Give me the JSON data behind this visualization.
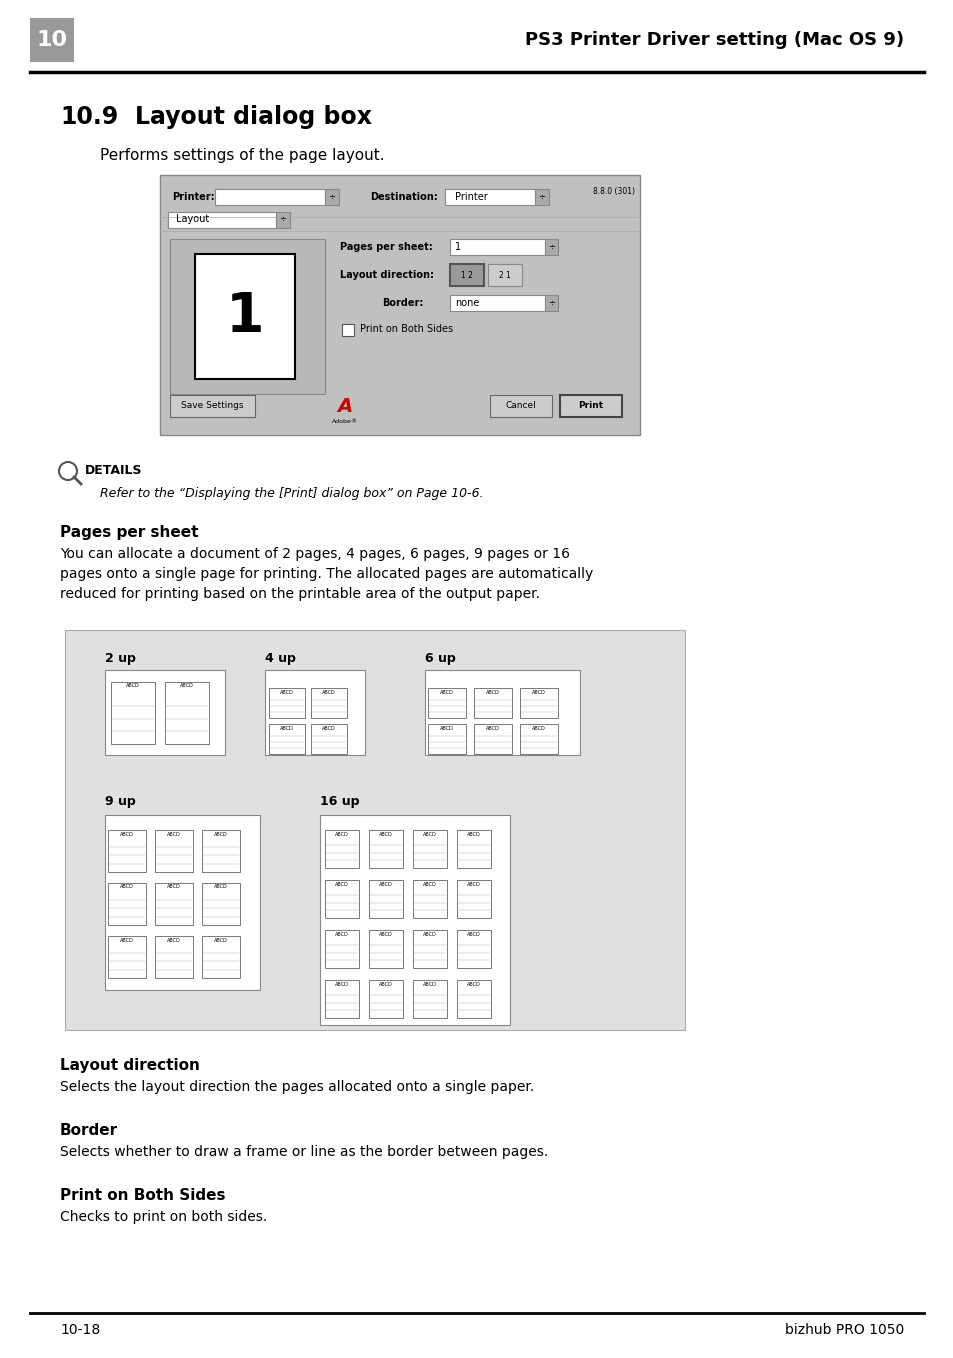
{
  "page_width": 9.54,
  "page_height": 13.58,
  "dpi": 100,
  "bg_color": "#ffffff",
  "header_num": "10",
  "header_num_bg": "#999999",
  "header_title": "PS3 Printer Driver setting (Mac OS 9)",
  "footer_left": "10-18",
  "footer_right": "bizhub PRO 1050",
  "section_num": "10.9",
  "section_title": "Layout dialog box",
  "section_intro": "Performs settings of the page layout.",
  "details_text": "Refer to the “Displaying the [Print] dialog box” on Page 10-6.",
  "pages_per_sheet_title": "Pages per sheet",
  "pages_per_sheet_body": "You can allocate a document of 2 pages, 4 pages, 6 pages, 9 pages or 16\npages onto a single page for printing. The allocated pages are automatically\nreduced for printing based on the printable area of the output paper.",
  "layout_direction_title": "Layout direction",
  "layout_direction_body": "Selects the layout direction the pages allocated onto a single paper.",
  "border_title": "Border",
  "border_body": "Selects whether to draw a frame or line as the border between pages.",
  "print_both_title": "Print on Both Sides",
  "print_both_body": "Checks to print on both sides.",
  "dialog_bg": "#c0c0c0",
  "grid_bg": "#e0e0e0"
}
